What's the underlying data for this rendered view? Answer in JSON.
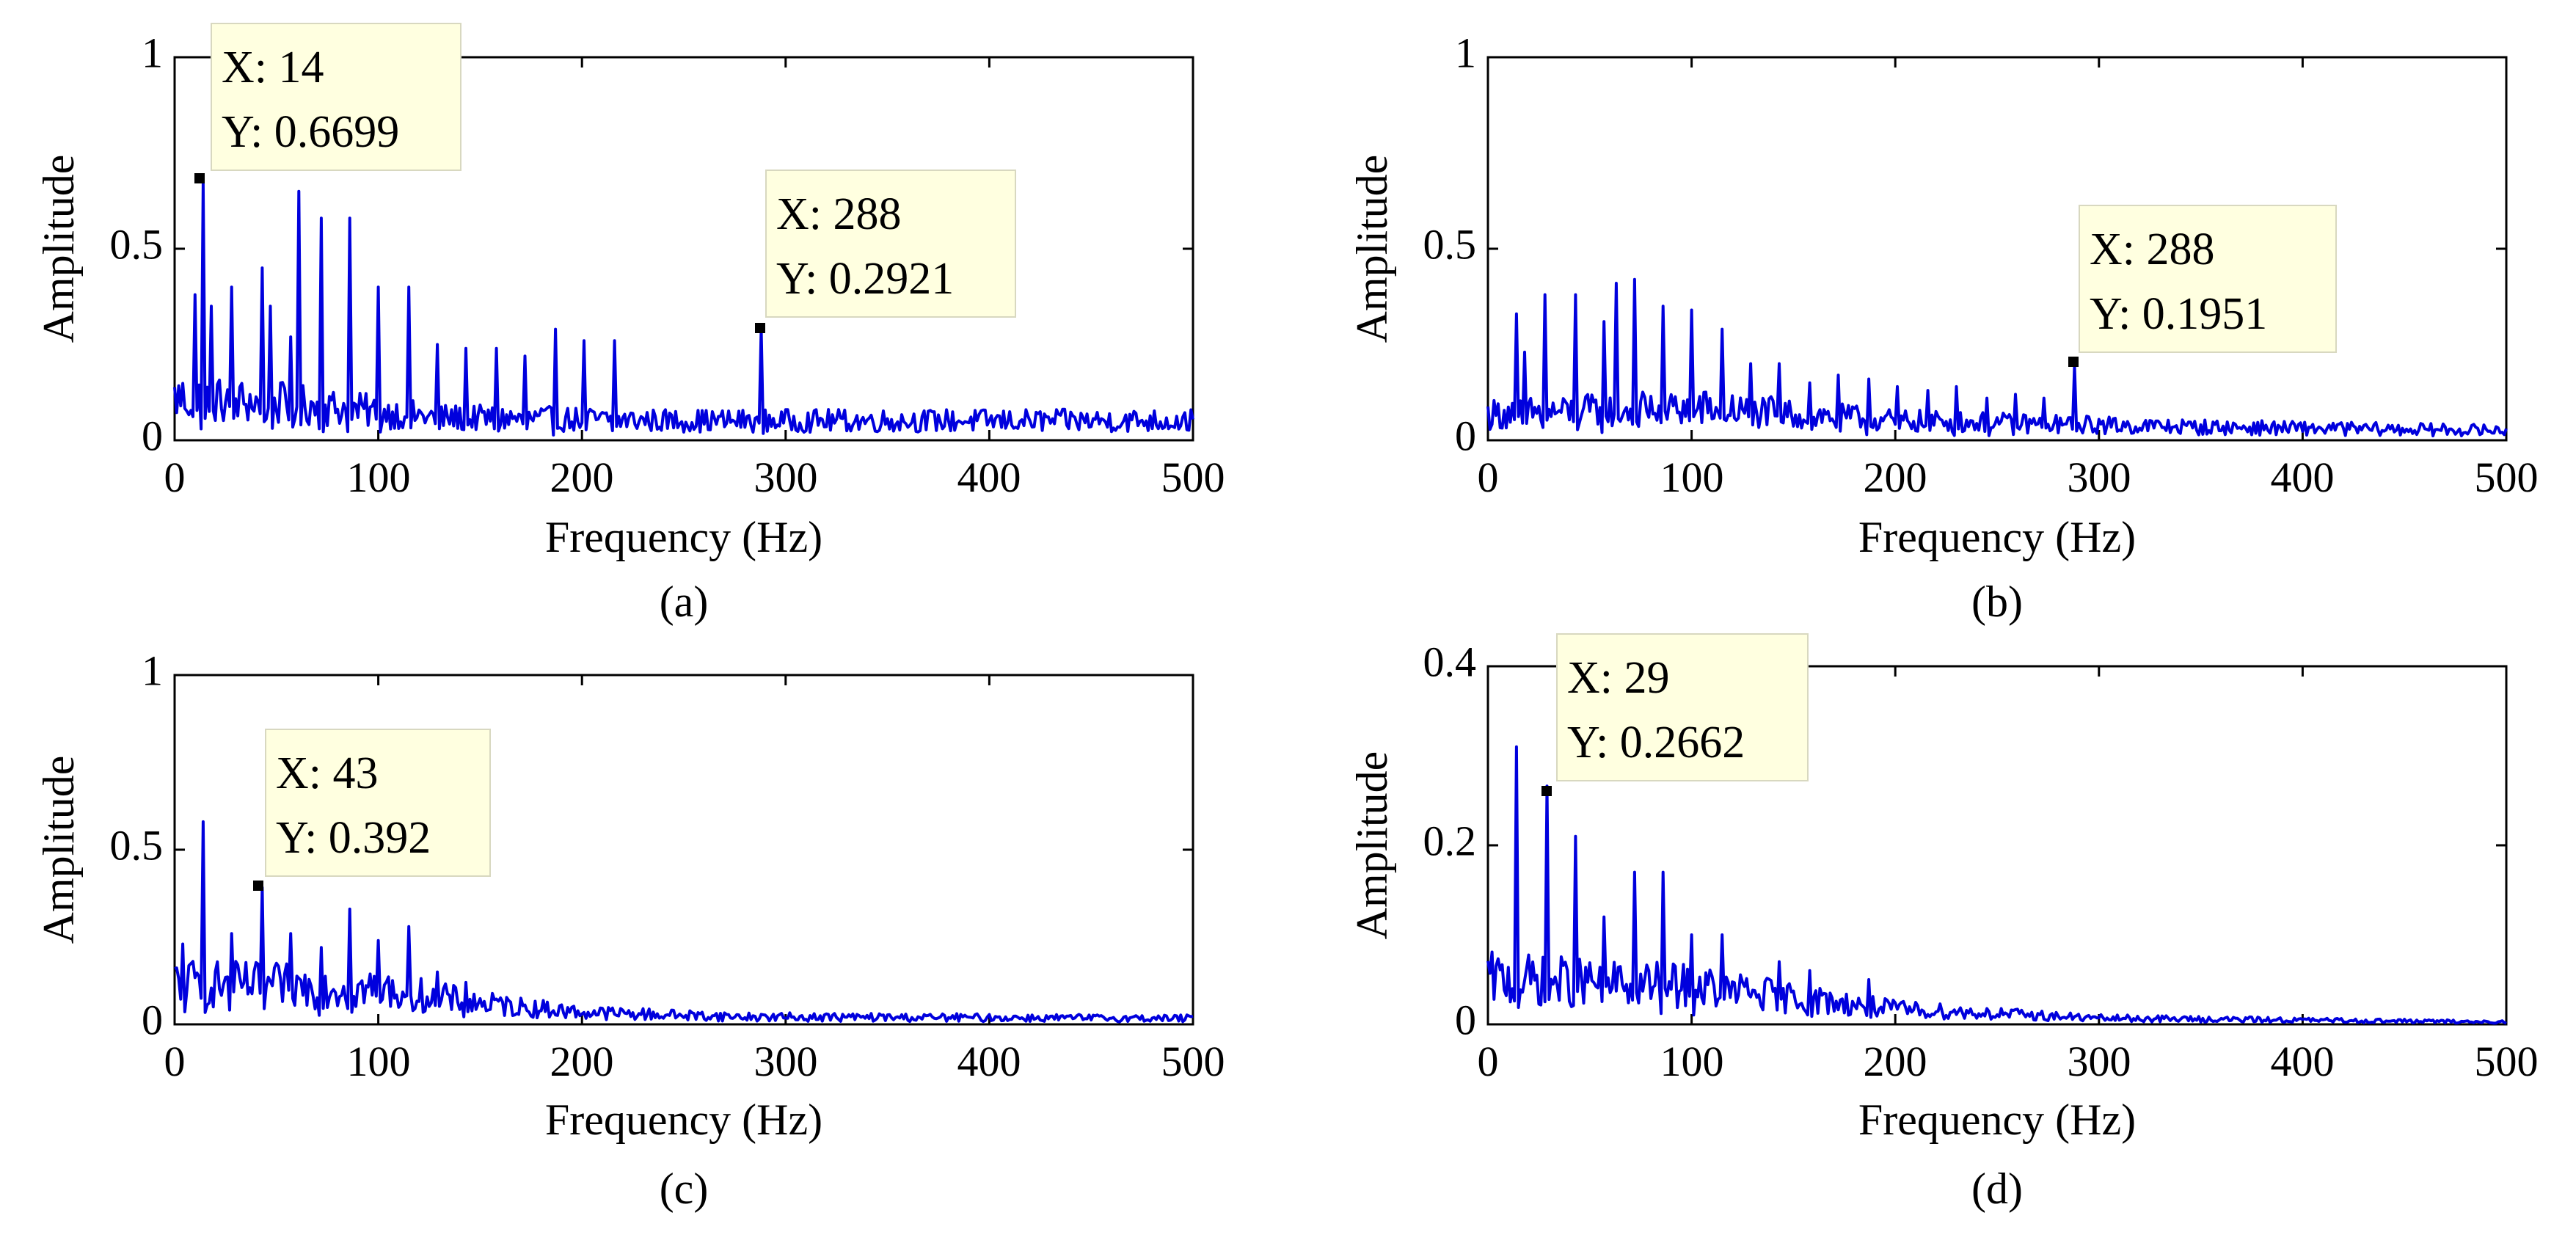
{
  "chart_data": [
    {
      "type": "line",
      "caption": "(a)",
      "xlabel": "Frequency (Hz)",
      "ylabel": "Amplitude",
      "xlim": [
        0,
        500
      ],
      "ylim": [
        0,
        1
      ],
      "x_ticks": [
        "0",
        "100",
        "200",
        "300",
        "400",
        "500"
      ],
      "y_ticks": [
        "0",
        "0.5",
        "1"
      ],
      "grid": false,
      "series_color": "#0000dd",
      "series": [
        {
          "name": "spectrum",
          "peaks": [
            [
              10,
              0.38
            ],
            [
              14,
              0.6699
            ],
            [
              18,
              0.35
            ],
            [
              28,
              0.4
            ],
            [
              43,
              0.45
            ],
            [
              47,
              0.35
            ],
            [
              57,
              0.27
            ],
            [
              61,
              0.65
            ],
            [
              72,
              0.58
            ],
            [
              86,
              0.58
            ],
            [
              100,
              0.4
            ],
            [
              115,
              0.4
            ],
            [
              129,
              0.25
            ],
            [
              143,
              0.24
            ],
            [
              158,
              0.24
            ],
            [
              172,
              0.22
            ],
            [
              187,
              0.29
            ],
            [
              201,
              0.26
            ],
            [
              216,
              0.26
            ],
            [
              288,
              0.2921
            ]
          ],
          "noise_profile": [
            [
              0,
              0.13
            ],
            [
              60,
              0.11
            ],
            [
              130,
              0.07
            ],
            [
              250,
              0.06
            ],
            [
              500,
              0.06
            ]
          ]
        }
      ],
      "datatips": [
        {
          "x_label": "X: 14",
          "y_label": "Y: 0.6699",
          "x": 14,
          "y": 0.6699
        },
        {
          "x_label": "X: 288",
          "y_label": "Y: 0.2921",
          "x": 288,
          "y": 0.2921
        }
      ]
    },
    {
      "type": "line",
      "caption": "(b)",
      "xlabel": "Frequency (Hz)",
      "ylabel": "Amplitude",
      "xlim": [
        0,
        500
      ],
      "ylim": [
        0,
        1
      ],
      "x_ticks": [
        "0",
        "100",
        "200",
        "300",
        "400",
        "500"
      ],
      "y_ticks": [
        "0",
        "0.5",
        "1"
      ],
      "grid": false,
      "series_color": "#0000dd",
      "series": [
        {
          "name": "spectrum",
          "peaks": [
            [
              14,
              0.33
            ],
            [
              18,
              0.23
            ],
            [
              28,
              0.38
            ],
            [
              43,
              0.38
            ],
            [
              57,
              0.31
            ],
            [
              63,
              0.41
            ],
            [
              72,
              0.42
            ],
            [
              86,
              0.35
            ],
            [
              100,
              0.34
            ],
            [
              115,
              0.29
            ],
            [
              129,
              0.2
            ],
            [
              143,
              0.2
            ],
            [
              158,
              0.15
            ],
            [
              172,
              0.17
            ],
            [
              187,
              0.16
            ],
            [
              201,
              0.14
            ],
            [
              216,
              0.13
            ],
            [
              230,
              0.14
            ],
            [
              245,
              0.11
            ],
            [
              259,
              0.12
            ],
            [
              273,
              0.11
            ],
            [
              288,
              0.1951
            ]
          ],
          "noise_profile": [
            [
              0,
              0.08
            ],
            [
              100,
              0.1
            ],
            [
              200,
              0.06
            ],
            [
              350,
              0.04
            ],
            [
              500,
              0.03
            ]
          ]
        }
      ],
      "datatips": [
        {
          "x_label": "X: 288",
          "y_label": "Y: 0.1951",
          "x": 288,
          "y": 0.1951
        }
      ]
    },
    {
      "type": "line",
      "caption": "(c)",
      "xlabel": "Frequency (Hz)",
      "ylabel": "Amplitude",
      "xlim": [
        0,
        500
      ],
      "ylim": [
        0,
        1
      ],
      "x_ticks": [
        "0",
        "100",
        "200",
        "300",
        "400",
        "500"
      ],
      "y_ticks": [
        "0",
        "0.5",
        "1"
      ],
      "grid": false,
      "series_color": "#0000dd",
      "series": [
        {
          "name": "spectrum",
          "peaks": [
            [
              4,
              0.23
            ],
            [
              14,
              0.58
            ],
            [
              28,
              0.26
            ],
            [
              43,
              0.392
            ],
            [
              57,
              0.26
            ],
            [
              72,
              0.22
            ],
            [
              86,
              0.33
            ],
            [
              100,
              0.24
            ],
            [
              115,
              0.28
            ],
            [
              129,
              0.15
            ],
            [
              143,
              0.12
            ]
          ],
          "noise_profile": [
            [
              0,
              0.14
            ],
            [
              100,
              0.12
            ],
            [
              150,
              0.07
            ],
            [
              200,
              0.04
            ],
            [
              280,
              0.025
            ],
            [
              500,
              0.02
            ]
          ]
        }
      ],
      "datatips": [
        {
          "x_label": "X: 43",
          "y_label": "Y: 0.392",
          "x": 43,
          "y": 0.392
        }
      ]
    },
    {
      "type": "line",
      "caption": "(d)",
      "xlabel": "Frequency (Hz)",
      "ylabel": "Amplitude",
      "xlim": [
        0,
        500
      ],
      "ylim": [
        0,
        0.4
      ],
      "x_ticks": [
        "0",
        "100",
        "200",
        "300",
        "400",
        "500"
      ],
      "y_ticks": [
        "0",
        "0.2",
        "0.4"
      ],
      "grid": false,
      "series_color": "#0000dd",
      "series": [
        {
          "name": "spectrum",
          "peaks": [
            [
              14,
              0.31
            ],
            [
              29,
              0.2662
            ],
            [
              43,
              0.21
            ],
            [
              57,
              0.12
            ],
            [
              72,
              0.17
            ],
            [
              86,
              0.17
            ],
            [
              100,
              0.1
            ],
            [
              115,
              0.1
            ],
            [
              143,
              0.07
            ],
            [
              158,
              0.06
            ],
            [
              187,
              0.05
            ]
          ],
          "noise_profile": [
            [
              0,
              0.06
            ],
            [
              100,
              0.05
            ],
            [
              200,
              0.02
            ],
            [
              300,
              0.008
            ],
            [
              500,
              0.003
            ]
          ]
        }
      ],
      "datatips": [
        {
          "x_label": "X: 29",
          "y_label": "Y: 0.2662",
          "x": 29,
          "y": 0.2662
        }
      ]
    }
  ]
}
